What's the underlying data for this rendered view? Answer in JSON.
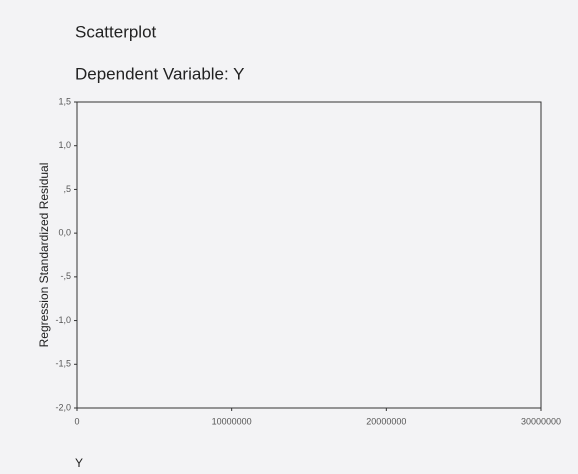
{
  "chart_data": {
    "type": "scatter",
    "title": "Scatterplot",
    "subtitle": "Dependent Variable: Y",
    "y_label": "Regression Standardized Residual",
    "x_label": "Y",
    "xlim": [
      0,
      30000000
    ],
    "xticks": [
      0,
      10000000,
      20000000,
      30000000
    ],
    "ylim": [
      -2.0,
      1.5
    ],
    "yticks": [
      {
        "value": 1.5,
        "label": "1,5"
      },
      {
        "value": 1.0,
        "label": "1,0"
      },
      {
        "value": 0.5,
        "label": ",5"
      },
      {
        "value": 0.0,
        "label": "0,0"
      },
      {
        "value": -0.5,
        "label": "-,5"
      },
      {
        "value": -1.0,
        "label": "-1,0"
      },
      {
        "value": -1.5,
        "label": "-1,5"
      },
      {
        "value": -2.0,
        "label": "-2,0"
      }
    ],
    "x": [],
    "y": []
  }
}
